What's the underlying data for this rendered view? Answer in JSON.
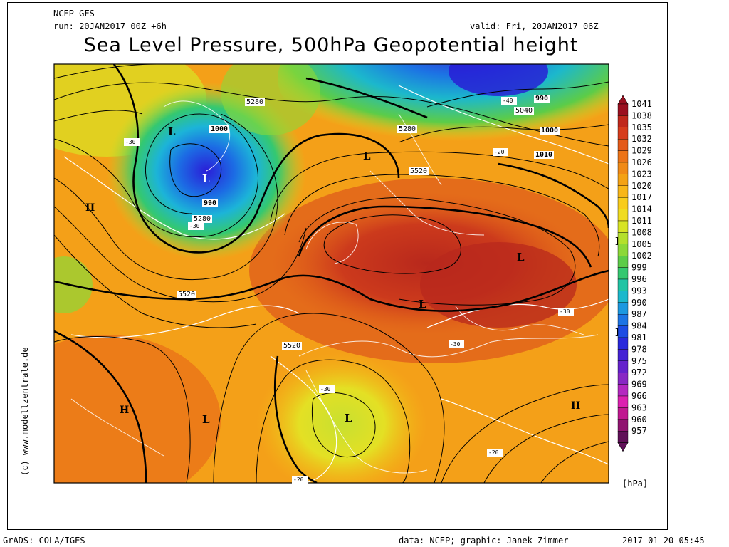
{
  "header": {
    "model": "NCEP GFS",
    "run": "run: 20JAN2017 00Z +6h",
    "valid": "valid: Fri, 20JAN2017 06Z",
    "title": "Sea Level Pressure, 500hPa Geopotential height"
  },
  "side_credit": "(c) www.modellzentrale.de",
  "footer": {
    "left": "GrADS: COLA/IGES",
    "center": "data: NCEP; graphic: Janek Zimmer",
    "right": "2017-01-20-05:45"
  },
  "legend": {
    "unit": "[hPa]",
    "levels": [
      "1041",
      "1038",
      "1035",
      "1032",
      "1029",
      "1026",
      "1023",
      "1020",
      "1017",
      "1014",
      "1011",
      "1008",
      "1005",
      "1002",
      "999",
      "996",
      "993",
      "990",
      "987",
      "984",
      "981",
      "978",
      "975",
      "972",
      "969",
      "966",
      "963",
      "960",
      "957"
    ],
    "colors": [
      "#9b1020",
      "#c0281c",
      "#d63c1c",
      "#e45a1a",
      "#ec7418",
      "#f08a16",
      "#f4a214",
      "#f8b618",
      "#f8cc1c",
      "#f0dc20",
      "#d8e424",
      "#b4e02c",
      "#8cd838",
      "#5ccc48",
      "#34c870",
      "#20c4a4",
      "#1cb8cc",
      "#1c98e0",
      "#1c74e4",
      "#1c4ce4",
      "#2828dc",
      "#4422d4",
      "#6422cc",
      "#8828c4",
      "#b428c0",
      "#dc20b0",
      "#c01890",
      "#901470",
      "#601058"
    ]
  },
  "map_labels": {
    "pressure_systems": [
      {
        "text": "H",
        "kind": "high"
      },
      {
        "text": "H",
        "kind": "high"
      },
      {
        "text": "H",
        "kind": "high"
      },
      {
        "text": "L",
        "kind": "low"
      },
      {
        "text": "L",
        "kind": "low"
      },
      {
        "text": "L",
        "kind": "low"
      },
      {
        "text": "L",
        "kind": "low"
      },
      {
        "text": "L",
        "kind": "low"
      },
      {
        "text": "L",
        "kind": "low"
      },
      {
        "text": "L",
        "kind": "low"
      },
      {
        "text": "L",
        "kind": "low"
      },
      {
        "text": "L",
        "kind": "low"
      }
    ],
    "contour_values": [
      "5280",
      "5280",
      "5280",
      "5040",
      "5520",
      "5520",
      "5520",
      "1000",
      "1000",
      "990",
      "990",
      "1010",
      "-30",
      "-30",
      "-30",
      "-30",
      "-30",
      "-40",
      "-20",
      "-20",
      "-20"
    ]
  }
}
